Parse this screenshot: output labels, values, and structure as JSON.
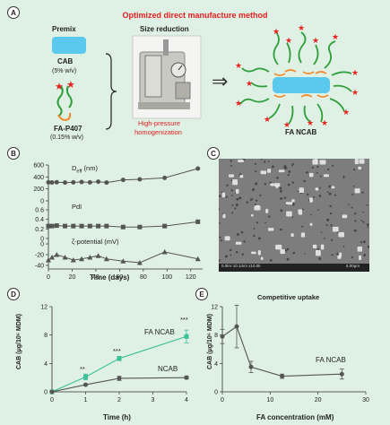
{
  "panels": {
    "A": "A",
    "B": "B",
    "C": "C",
    "D": "D",
    "E": "E"
  },
  "panel_a": {
    "title": "Optimized direct manufacture method",
    "premix_label": "Premix",
    "size_reduction_label": "Size reduction",
    "cab_label": "CAB",
    "cab_conc": "(5% w/v)",
    "fa_p407_label": "FA-P407",
    "fa_p407_conc": "(0.15% w/v)",
    "hph_line1": "High-pressure",
    "hph_line2": "homogenization",
    "arrow_symbol": "⇒",
    "product_label": "FA NCAB",
    "colors": {
      "title_red": "#e02020",
      "cab_blue": "#5bc8ee",
      "polymer_green": "#2e9e3a",
      "polymer_orange": "#f08a2c",
      "star_red": "#e8231f"
    }
  },
  "panel_b": {
    "xlabel": "Time (days)",
    "series_labels": {
      "deff": "D",
      "deff_sub": "eff",
      "deff_unit": " (nm)",
      "pdi": "PdI",
      "zeta": "ζ-potential (mV)"
    }
  },
  "panel_c": {
    "caption": "0.0kV 10.1mm x10.0k",
    "scale": "5.00μm"
  },
  "panel_d": {
    "ylabel": "CAB (μg/10⁶ MDM)",
    "xlabel": "Time (h)",
    "series_labels": {
      "fa_ncab": "FA NCAB",
      "ncab": "NCAB"
    },
    "significance": [
      "**",
      "***",
      "***"
    ]
  },
  "panel_e": {
    "title": "Competitive uptake",
    "ylabel": "CAB (μg/10⁶ MDM)",
    "xlabel": "FA concentration (mM)",
    "series_label": "FA NCAB"
  },
  "chart_data": [
    {
      "id": "B",
      "type": "line",
      "xlabel": "Time (days)",
      "ylabel": "",
      "xlim": [
        0,
        130
      ],
      "ylim": [
        -50,
        620
      ],
      "x_ticks": [
        0,
        20,
        40,
        60,
        80,
        100,
        120
      ],
      "y_ticks": [
        -40,
        -20,
        0,
        0.2,
        0.4,
        0.6,
        200,
        400,
        600
      ],
      "y_tick_labels": [
        "-40",
        "-20",
        "0",
        "0.2",
        "0.4",
        "0.6",
        "200",
        "400",
        "600"
      ],
      "series": [
        {
          "name": "Deff (nm)",
          "color": "#555555",
          "marker": "circle",
          "x": [
            0,
            3,
            7,
            14,
            21,
            28,
            35,
            42,
            49,
            63,
            77,
            98,
            126
          ],
          "y": [
            310,
            308,
            312,
            305,
            310,
            315,
            310,
            320,
            305,
            350,
            360,
            385,
            540
          ]
        },
        {
          "name": "PdI",
          "color": "#555555",
          "marker": "square",
          "x": [
            0,
            3,
            7,
            14,
            21,
            28,
            35,
            42,
            49,
            63,
            77,
            98,
            126
          ],
          "y": [
            0.26,
            0.26,
            0.27,
            0.26,
            0.26,
            0.26,
            0.26,
            0.26,
            0.26,
            0.24,
            0.24,
            0.26,
            0.35
          ]
        },
        {
          "name": "ζ-potential (mV)",
          "color": "#555555",
          "marker": "triangle",
          "x": [
            0,
            3,
            7,
            14,
            21,
            28,
            35,
            42,
            49,
            63,
            77,
            98,
            126
          ],
          "y": [
            -30,
            -25,
            -20,
            -25,
            -30,
            -28,
            -25,
            -22,
            -28,
            -32,
            -35,
            -15,
            -28
          ]
        }
      ]
    },
    {
      "id": "D",
      "type": "line",
      "xlabel": "Time (h)",
      "ylabel": "CAB (μg/10⁶ MDM)",
      "xlim": [
        0,
        4
      ],
      "ylim": [
        0,
        12
      ],
      "x_ticks": [
        0,
        1,
        2,
        3,
        4
      ],
      "y_ticks": [
        0,
        4,
        8,
        12
      ],
      "series": [
        {
          "name": "FA NCAB",
          "color": "#3cbf99",
          "marker": "square",
          "x": [
            0,
            1,
            2,
            4
          ],
          "y": [
            0,
            2.1,
            4.7,
            7.8
          ],
          "err": [
            0,
            0.4,
            0.3,
            0.9
          ]
        },
        {
          "name": "NCAB",
          "color": "#555555",
          "marker": "circle",
          "x": [
            0,
            1,
            2,
            4
          ],
          "y": [
            0,
            1.0,
            1.9,
            2.0
          ],
          "err": [
            0,
            0.1,
            0.3,
            0.2
          ]
        }
      ]
    },
    {
      "id": "E",
      "type": "line",
      "title": "Competitive uptake",
      "xlabel": "FA concentration (mM)",
      "ylabel": "CAB (μg/10⁶ MDM)",
      "xlim": [
        0,
        30
      ],
      "ylim": [
        0,
        12
      ],
      "x_ticks": [
        0,
        10,
        20,
        30
      ],
      "y_ticks": [
        0,
        4,
        8,
        12
      ],
      "series": [
        {
          "name": "FA NCAB",
          "color": "#555555",
          "marker": "circle",
          "x": [
            0,
            3,
            6,
            12.5,
            25
          ],
          "y": [
            7.8,
            9.2,
            3.5,
            2.2,
            2.5
          ],
          "err": [
            1.0,
            3.0,
            0.8,
            0.3,
            0.7
          ]
        }
      ]
    }
  ]
}
